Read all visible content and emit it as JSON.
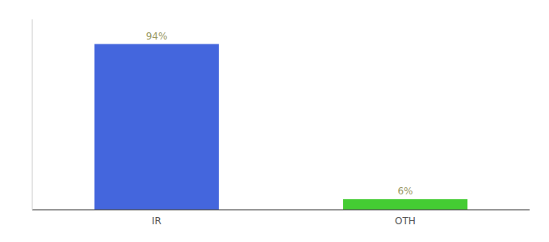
{
  "chart_data": {
    "type": "bar",
    "categories": [
      "IR",
      "OTH"
    ],
    "values": [
      94,
      6
    ],
    "value_labels": [
      "94%",
      "6%"
    ],
    "colors": [
      "#4466dd",
      "#44cc33"
    ],
    "ylim": [
      0,
      108
    ],
    "data_labels": true,
    "tick_labels": "x",
    "grid": false
  }
}
